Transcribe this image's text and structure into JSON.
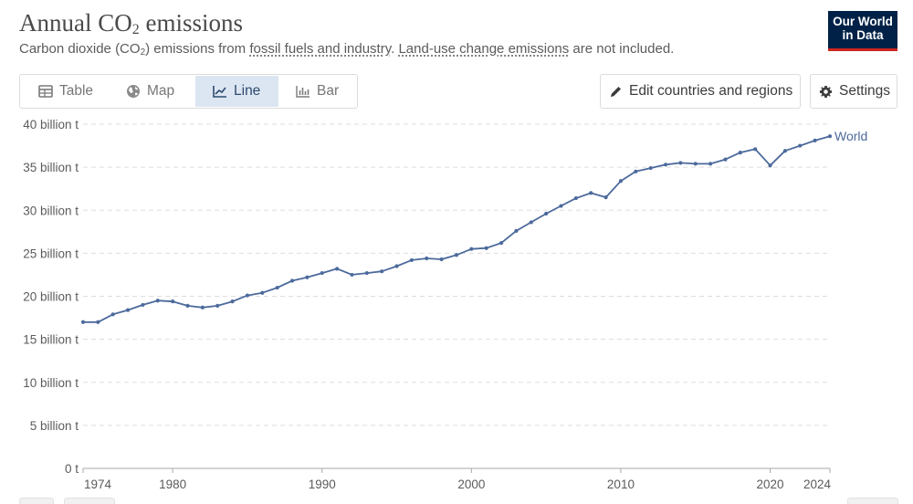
{
  "header": {
    "title_main": "Annual CO",
    "title_sub": "2",
    "title_end": " emissions",
    "subtitle_a": "Carbon dioxide (CO",
    "subtitle_sub": "2",
    "subtitle_b": ") emissions from ",
    "subtitle_link1": "fossil fuels and industry",
    "subtitle_c": ". ",
    "subtitle_link2": "Land-use change emissions",
    "subtitle_d": " are not included."
  },
  "logo": {
    "line1": "Our World",
    "line2": "in Data"
  },
  "tabs": [
    {
      "label": "Table",
      "icon": "table-icon",
      "active": false
    },
    {
      "label": "Map",
      "icon": "globe-icon",
      "active": false
    },
    {
      "label": "Line",
      "icon": "line-chart-icon",
      "active": true
    },
    {
      "label": "Bar",
      "icon": "bar-chart-icon",
      "active": false
    }
  ],
  "buttons": {
    "edit": {
      "label": "Edit countries and regions",
      "icon": "pencil-icon"
    },
    "settings": {
      "label": "Settings",
      "icon": "gear-icon"
    }
  },
  "colors": {
    "series": "#4c6a9c",
    "accent_active_tab": "#dce6f2",
    "logo_bg": "#002147",
    "logo_bar": "#ce261e"
  },
  "chart_data": {
    "type": "line",
    "title": "Annual CO₂ emissions",
    "ylim": [
      0,
      40
    ],
    "y_ticks": [
      0,
      5,
      10,
      15,
      20,
      25,
      30,
      35,
      40
    ],
    "y_tick_labels": [
      "0 t",
      "5 billion t",
      "10 billion t",
      "15 billion t",
      "20 billion t",
      "25 billion t",
      "30 billion t",
      "35 billion t",
      "40 billion t"
    ],
    "x_ticks": [
      1974,
      1980,
      1990,
      2000,
      2010,
      2020,
      2024
    ],
    "x_tick_labels": [
      "1974",
      "1980",
      "1990",
      "2000",
      "2010",
      "2020",
      "2024"
    ],
    "xlim": [
      1974,
      2024
    ],
    "grid": "horizontal dashed",
    "series": [
      {
        "name": "World",
        "x": [
          1974,
          1975,
          1976,
          1977,
          1978,
          1979,
          1980,
          1981,
          1982,
          1983,
          1984,
          1985,
          1986,
          1987,
          1988,
          1989,
          1990,
          1991,
          1992,
          1993,
          1994,
          1995,
          1996,
          1997,
          1998,
          1999,
          2000,
          2001,
          2002,
          2003,
          2004,
          2005,
          2006,
          2007,
          2008,
          2009,
          2010,
          2011,
          2012,
          2013,
          2014,
          2015,
          2016,
          2017,
          2018,
          2019,
          2020,
          2021,
          2022,
          2023,
          2024
        ],
        "values": [
          17.0,
          17.0,
          17.9,
          18.4,
          19.0,
          19.5,
          19.4,
          18.9,
          18.7,
          18.9,
          19.4,
          20.1,
          20.4,
          21.0,
          21.8,
          22.2,
          22.7,
          23.2,
          22.5,
          22.7,
          22.9,
          23.5,
          24.2,
          24.4,
          24.3,
          24.8,
          25.5,
          25.6,
          26.2,
          27.6,
          28.6,
          29.6,
          30.5,
          31.4,
          32.0,
          31.5,
          33.4,
          34.5,
          34.9,
          35.3,
          35.5,
          35.4,
          35.4,
          35.9,
          36.7,
          37.1,
          35.2,
          36.9,
          37.5,
          38.1,
          38.6
        ]
      }
    ]
  }
}
